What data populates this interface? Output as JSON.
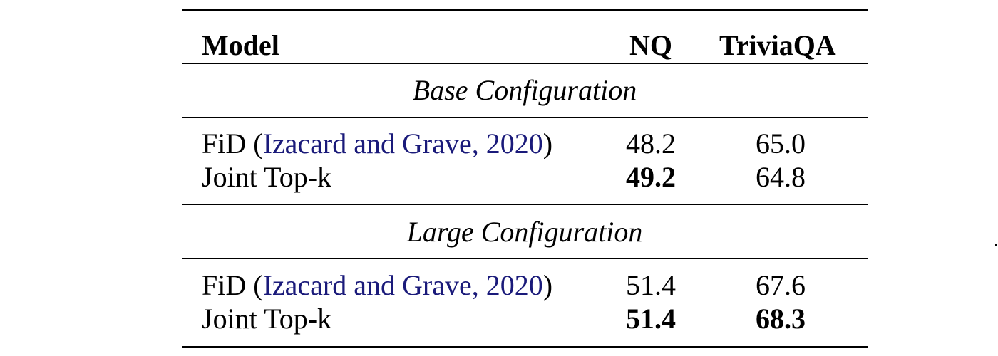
{
  "table": {
    "header": {
      "model": "Model",
      "nq": "NQ",
      "triviaqa": "TriviaQA"
    },
    "sections": [
      {
        "title": "Base Configuration",
        "rows": [
          {
            "model_prefix": "FiD (",
            "citation": "Izacard and Grave, 2020",
            "model_suffix": ")",
            "nq": "48.2",
            "triviaqa": "65.0",
            "nq_bold": false,
            "triviaqa_bold": false
          },
          {
            "model_prefix": "Joint Top-k",
            "citation": "",
            "model_suffix": "",
            "nq": "49.2",
            "triviaqa": "64.8",
            "nq_bold": true,
            "triviaqa_bold": false
          }
        ]
      },
      {
        "title": "Large Configuration",
        "rows": [
          {
            "model_prefix": "FiD (",
            "citation": "Izacard and Grave, 2020",
            "model_suffix": ")",
            "nq": "51.4",
            "triviaqa": "67.6",
            "nq_bold": false,
            "triviaqa_bold": false
          },
          {
            "model_prefix": "Joint Top-k",
            "citation": "",
            "model_suffix": "",
            "nq": "51.4",
            "triviaqa": "68.3",
            "nq_bold": true,
            "triviaqa_bold": true
          }
        ]
      }
    ],
    "colors": {
      "citation_link": "#1a1a7a",
      "text": "#000000",
      "rule": "#000000"
    }
  }
}
